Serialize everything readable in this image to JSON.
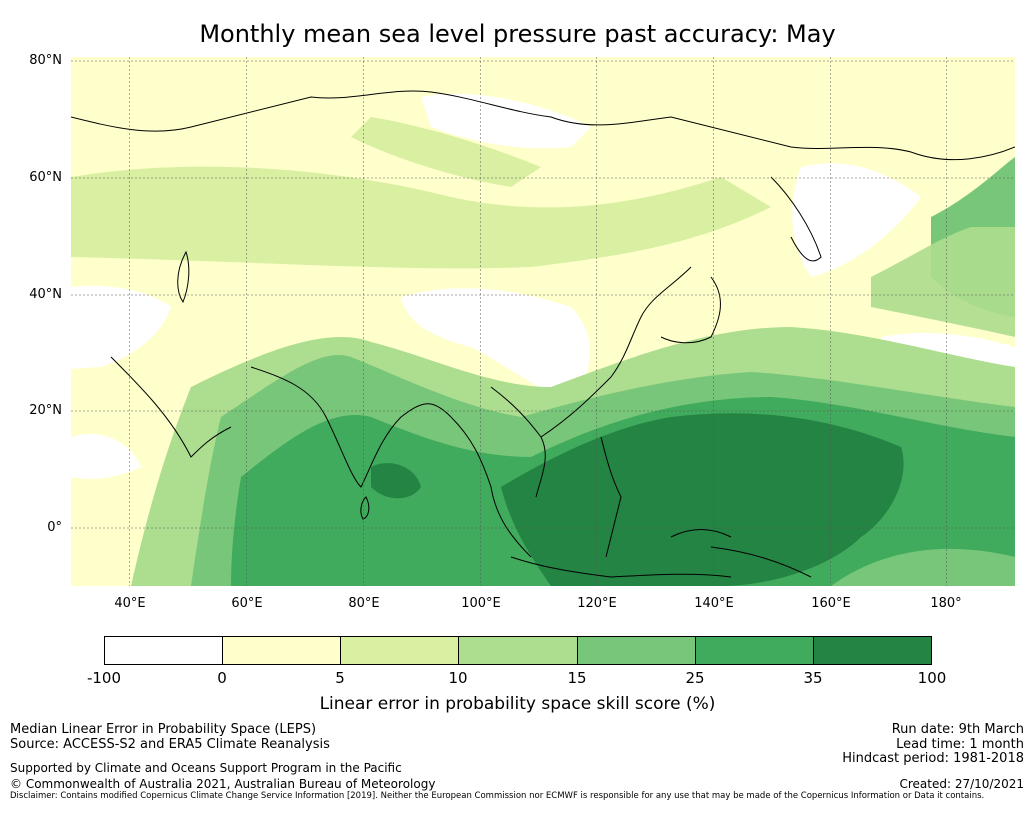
{
  "title": "Monthly mean sea level pressure past accuracy: May",
  "lat_labels": [
    "80°N",
    "60°N",
    "40°N",
    "20°N",
    "0°"
  ],
  "lon_labels": [
    "40°E",
    "60°E",
    "80°E",
    "100°E",
    "120°E",
    "140°E",
    "160°E",
    "180°"
  ],
  "colorbar": {
    "ticks": [
      "-100",
      "0",
      "5",
      "10",
      "15",
      "25",
      "35",
      "100"
    ],
    "colors": [
      "#ffffff",
      "#ffffcc",
      "#d9f0a3",
      "#addd8e",
      "#78c679",
      "#41ab5d",
      "#238443"
    ],
    "label": "Linear error in probability space skill score (%)"
  },
  "footer": {
    "method": "Median Linear Error in Probability Space (LEPS)",
    "source": "Source: ACCESS-S2 and ERA5 Climate Reanalysis",
    "support": "Supported by Climate and Oceans Support Program in the Pacific",
    "copyright": "© Commonwealth of Australia 2021, Australian Bureau of Meteorology",
    "run_date": "Run date: 9th March",
    "lead_time": "Lead time: 1 month",
    "hindcast": "Hindcast period: 1981-2018",
    "created": "Created: 27/10/2021",
    "disclaimer": "Disclaimer: Contains modified Copernicus Climate Change Service Information [2019]. Neither the European Commission nor ECMWF is responsible for any use that may be made of the Copernicus Information or Data it contains."
  }
}
